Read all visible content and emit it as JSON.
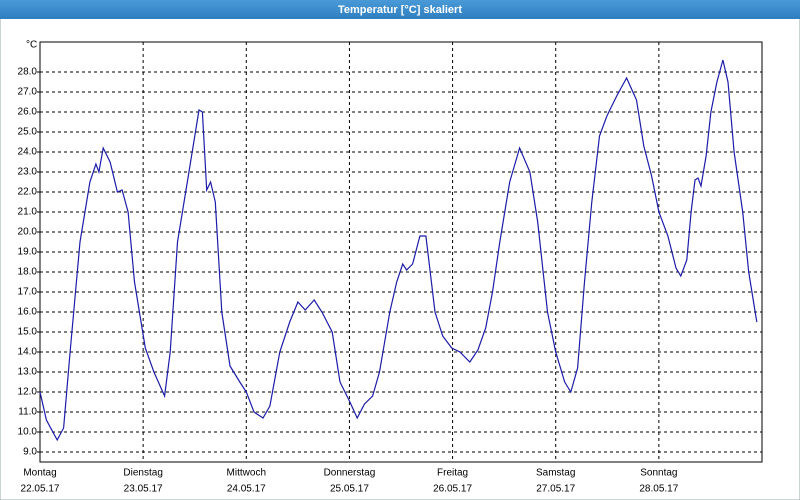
{
  "chart_data": {
    "type": "line",
    "title": "Temperatur [°C] skaliert",
    "y_label": "°C",
    "xlim": [
      0,
      168
    ],
    "ylim": [
      8.5,
      29.5
    ],
    "xticks": [
      {
        "value": 0,
        "label": "Montag",
        "date": "22.05.17"
      },
      {
        "value": 24,
        "label": "Dienstag",
        "date": "23.05.17"
      },
      {
        "value": 48,
        "label": "Mittwoch",
        "date": "24.05.17"
      },
      {
        "value": 72,
        "label": "Donnerstag",
        "date": "25.05.17"
      },
      {
        "value": 96,
        "label": "Freitag",
        "date": "26.05.17"
      },
      {
        "value": 120,
        "label": "Samstag",
        "date": "27.05.17"
      },
      {
        "value": 144,
        "label": "Sonntag",
        "date": "28.05.17"
      }
    ],
    "yticks": [
      {
        "value": 9,
        "label": "9.0"
      },
      {
        "value": 10,
        "label": "10.0"
      },
      {
        "value": 11,
        "label": "11.0"
      },
      {
        "value": 12,
        "label": "12.0"
      },
      {
        "value": 13,
        "label": "13.0"
      },
      {
        "value": 14,
        "label": "14.0"
      },
      {
        "value": 15,
        "label": "15.0"
      },
      {
        "value": 16,
        "label": "16.0"
      },
      {
        "value": 17,
        "label": "17.0"
      },
      {
        "value": 18,
        "label": "18.0"
      },
      {
        "value": 19,
        "label": "19.0"
      },
      {
        "value": 20,
        "label": "20.0"
      },
      {
        "value": 21,
        "label": "21.0"
      },
      {
        "value": 22,
        "label": "22.0"
      },
      {
        "value": 23,
        "label": "23.0"
      },
      {
        "value": 24,
        "label": "24.0"
      },
      {
        "value": 25,
        "label": "25.0"
      },
      {
        "value": 26,
        "label": "26.0"
      },
      {
        "value": 27,
        "label": "27.0"
      },
      {
        "value": 28,
        "label": "28.0"
      }
    ],
    "grid": true,
    "x": [
      0,
      1.5,
      4,
      5.5,
      7,
      9.3,
      11.6,
      13,
      13.7,
      14.7,
      16.3,
      18,
      19.1,
      20.5,
      22,
      24.5,
      26.5,
      29,
      30.3,
      32,
      34.5,
      37,
      37.8,
      38.8,
      39.7,
      40.8,
      42.3,
      44.2,
      46.5,
      48,
      49.8,
      51.9,
      53.5,
      55.8,
      58.1,
      60,
      61.7,
      63.8,
      65.6,
      68,
      69.8,
      72.1,
      73.8,
      75.5,
      77.4,
      79,
      81.4,
      83,
      84.4,
      85.3,
      86.7,
      88.4,
      89.8,
      91.9,
      93.7,
      95.8,
      97.7,
      100,
      101.9,
      103.7,
      105.3,
      107,
      109.3,
      111.6,
      114,
      115.8,
      118.1,
      120,
      122.1,
      123.5,
      125.1,
      126.7,
      128.4,
      130.2,
      131.9,
      134.2,
      136.5,
      138.8,
      140.5,
      142.3,
      144,
      146.1,
      148,
      149.1,
      150.5,
      151.5,
      152.4,
      153.1,
      153.8,
      155,
      156.1,
      157.5,
      158.9,
      160.1,
      161.5,
      163.5,
      164.9,
      166.8
    ],
    "series": [
      {
        "name": "Temperatur",
        "color": "#1c1caa",
        "values": [
          12.0,
          10.6,
          9.6,
          10.2,
          14.0,
          19.5,
          22.5,
          23.4,
          23.0,
          24.2,
          23.5,
          22.0,
          22.1,
          21.0,
          17.5,
          14.2,
          13.0,
          11.8,
          14.0,
          19.5,
          22.8,
          26.1,
          26.0,
          22.1,
          22.5,
          21.5,
          16.0,
          13.3,
          12.5,
          12.0,
          11.0,
          10.7,
          11.3,
          14.0,
          15.5,
          16.5,
          16.1,
          16.6,
          16.0,
          15.0,
          12.5,
          11.5,
          10.7,
          11.4,
          11.8,
          13.0,
          16.0,
          17.5,
          18.4,
          18.1,
          18.4,
          19.8,
          19.8,
          16.0,
          14.8,
          14.2,
          14.0,
          13.5,
          14.1,
          15.2,
          17.0,
          19.5,
          22.5,
          24.2,
          23.0,
          20.5,
          16.0,
          14.0,
          12.5,
          12.0,
          13.2,
          17.5,
          21.5,
          24.8,
          25.8,
          26.8,
          27.7,
          26.6,
          24.3,
          22.8,
          21.0,
          19.8,
          18.2,
          17.8,
          18.6,
          21.0,
          22.6,
          22.7,
          22.3,
          23.8,
          26.0,
          27.5,
          28.6,
          27.5,
          24.0,
          21.0,
          18.0,
          15.5
        ]
      }
    ]
  }
}
